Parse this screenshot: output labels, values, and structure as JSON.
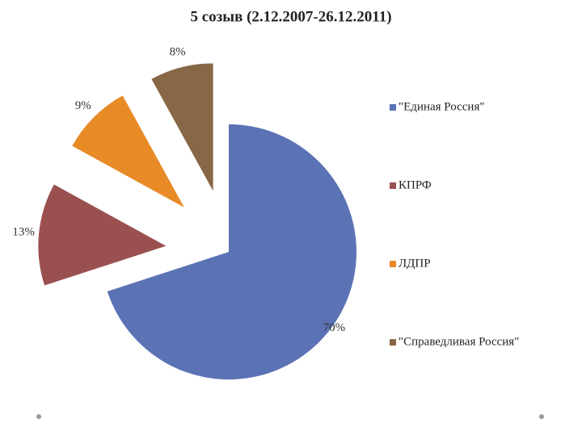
{
  "chart_data": {
    "type": "pie",
    "title": "5 созыв (2.12.2007-26.12.2011)",
    "categories": [
      "\"Единая Россия\"",
      "КПРФ",
      "ЛДПР",
      "\"Справедливая Россия\""
    ],
    "values": [
      70,
      13,
      9,
      8
    ],
    "value_labels": [
      "70%",
      "13%",
      "9%",
      "8%"
    ],
    "colors": [
      "#5b73b5",
      "#9b5050",
      "#e88a26",
      "#876746"
    ],
    "legend": "right"
  }
}
